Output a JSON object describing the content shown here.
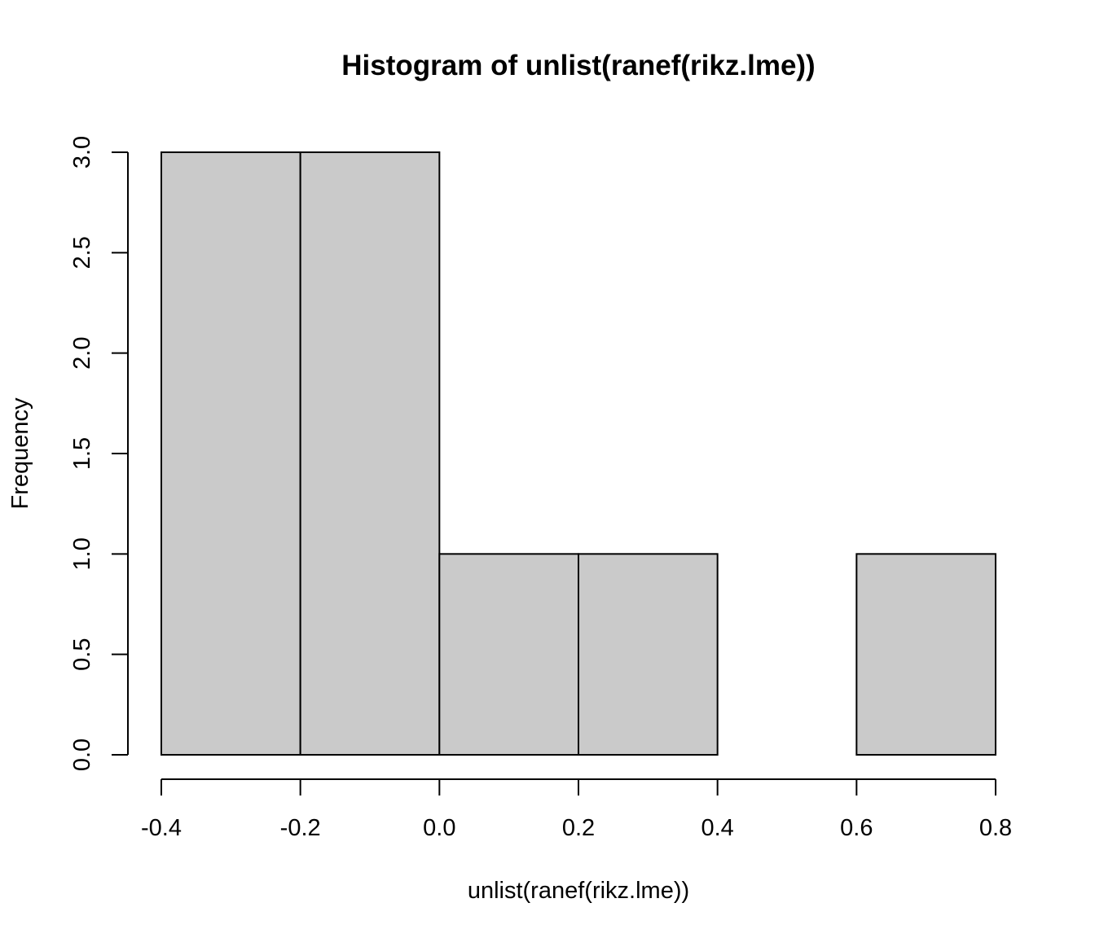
{
  "chart_data": {
    "type": "bar",
    "subtype": "histogram",
    "title": "Histogram of unlist(ranef(rikz.lme))",
    "xlabel": "unlist(ranef(rikz.lme))",
    "ylabel": "Frequency",
    "bins": [
      {
        "start": -0.4,
        "end": -0.2,
        "count": 3
      },
      {
        "start": -0.2,
        "end": 0.0,
        "count": 3
      },
      {
        "start": 0.0,
        "end": 0.2,
        "count": 1
      },
      {
        "start": 0.2,
        "end": 0.4,
        "count": 1
      },
      {
        "start": 0.4,
        "end": 0.6,
        "count": 0
      },
      {
        "start": 0.6,
        "end": 0.8,
        "count": 1
      }
    ],
    "xlim": [
      -0.4,
      0.8
    ],
    "ylim": [
      0,
      3
    ],
    "x_ticks": [
      "-0.4",
      "-0.2",
      "0.0",
      "0.2",
      "0.4",
      "0.6",
      "0.8"
    ],
    "y_ticks": [
      "0.0",
      "0.5",
      "1.0",
      "1.5",
      "2.0",
      "2.5",
      "3.0"
    ],
    "bar_color": "#cacaca",
    "grid": false,
    "legend": "none"
  }
}
